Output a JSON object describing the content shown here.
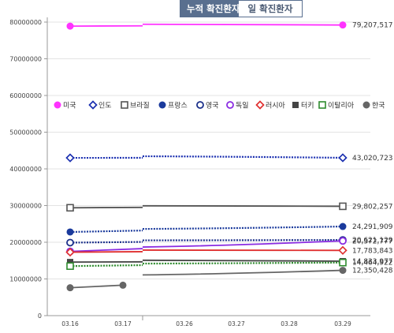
{
  "tabs": [
    {
      "label": "누적 확진환자",
      "active": true
    },
    {
      "label": "일 확진환자",
      "active": false
    }
  ],
  "chart_data": {
    "type": "line",
    "title": "",
    "xlabel": "",
    "ylabel": "",
    "categories": [
      "03.16",
      "03.17",
      "03.26",
      "03.27",
      "03.28",
      "03.29"
    ],
    "ylim": [
      0,
      80000000
    ],
    "yticks": [
      "0",
      "10000000",
      "20000000",
      "30000000",
      "40000000",
      "50000000",
      "60000000",
      "70000000",
      "80000000"
    ],
    "grid": true,
    "legend_position": "right",
    "series": [
      {
        "name": "미국",
        "color": "#ff33ff",
        "marker": "circle-filled",
        "line": "solid",
        "values": [
          78900000,
          null,
          null,
          null,
          null,
          79207517
        ],
        "end_label": "79,207,517"
      },
      {
        "name": "인도",
        "color": "#1a2fb0",
        "marker": "diamond-open",
        "line": "dotted",
        "values": [
          43000000,
          null,
          null,
          null,
          null,
          43020723
        ],
        "end_label": "43,020,723"
      },
      {
        "name": "브라질",
        "color": "#555555",
        "marker": "square-open",
        "line": "solid",
        "values": [
          29400000,
          null,
          null,
          null,
          null,
          29802257
        ],
        "end_label": "29,802,257"
      },
      {
        "name": "프랑스",
        "color": "#1a3a9c",
        "marker": "circle-filled",
        "line": "dotted",
        "values": [
          22800000,
          null,
          null,
          null,
          null,
          24291909
        ],
        "end_label": "24,291,909"
      },
      {
        "name": "영국",
        "color": "#1a2f8a",
        "marker": "circle-open",
        "line": "dotted",
        "values": [
          19900000,
          null,
          null,
          null,
          null,
          20621129
        ],
        "end_label": "20,621,129"
      },
      {
        "name": "독일",
        "color": "#8a2be2",
        "marker": "circle-open",
        "line": "solid",
        "values": [
          17500000,
          null,
          null,
          null,
          null,
          20372777
        ],
        "end_label": "20,372,777"
      },
      {
        "name": "러시아",
        "color": "#e03030",
        "marker": "diamond-open",
        "line": "solid",
        "values": [
          17300000,
          null,
          null,
          null,
          null,
          17783843
        ],
        "end_label": "17,783,843"
      },
      {
        "name": "터키",
        "color": "#444444",
        "marker": "square-filled",
        "line": "solid",
        "values": [
          14600000,
          null,
          null,
          null,
          null,
          14833977
        ],
        "end_label": "14,833,977"
      },
      {
        "name": "이탈리아",
        "color": "#2e8b2e",
        "marker": "square-open",
        "line": "dotted",
        "values": [
          13500000,
          null,
          null,
          null,
          null,
          14464922
        ],
        "end_label": "14,464,922"
      },
      {
        "name": "한국",
        "color": "#666666",
        "marker": "circle-filled",
        "line": "solid",
        "values": [
          7600000,
          8300000,
          null,
          null,
          null,
          12350428
        ],
        "end_label": "12,350,428"
      }
    ]
  }
}
